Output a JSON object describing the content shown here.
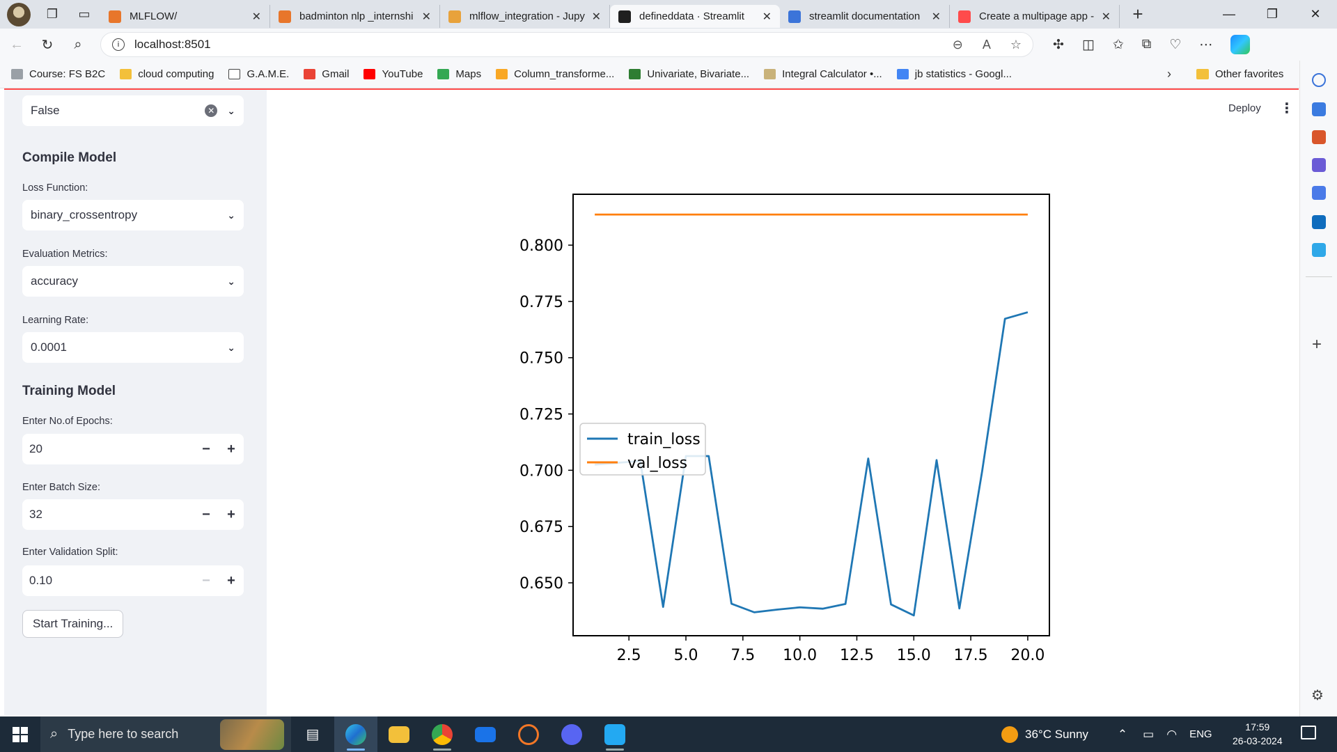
{
  "browser": {
    "tabs": [
      {
        "title": "MLFLOW/",
        "favicon_color": "#e8762b"
      },
      {
        "title": "badminton nlp _internshi",
        "favicon_color": "#e8762b"
      },
      {
        "title": "mlflow_integration - Jupy",
        "favicon_color": "#e8a23b"
      },
      {
        "title": "defineddata · Streamlit",
        "favicon_color": "#1f1f1f",
        "active": true
      },
      {
        "title": "streamlit documentation",
        "favicon_color": "#3b74d9"
      },
      {
        "title": "Create a multipage app -",
        "favicon_color": "#ff4b4b"
      }
    ],
    "url": "localhost:8501",
    "favorites": [
      {
        "label": "Course: FS B2C",
        "icon_color": "#9aa0a6"
      },
      {
        "label": "cloud computing",
        "icon_color": "#f3c03a"
      },
      {
        "label": "G.A.M.E.",
        "icon_color": "#ffffff"
      },
      {
        "label": "Gmail",
        "icon_color": "#ea4335"
      },
      {
        "label": "YouTube",
        "icon_color": "#ff0000"
      },
      {
        "label": "Maps",
        "icon_color": "#34a853"
      },
      {
        "label": "Column_transforme...",
        "icon_color": "#f9a825"
      },
      {
        "label": "Univariate, Bivariate...",
        "icon_color": "#2e7d32"
      },
      {
        "label": "Integral Calculator •...",
        "icon_color": "#c9b27a"
      },
      {
        "label": "jb statistics - Googl...",
        "icon_color": "#4285f4"
      }
    ],
    "other_favorites": "Other favorites"
  },
  "sidebar": {
    "top_select_value": "False",
    "compile_heading": "Compile Model",
    "loss_label": "Loss Function:",
    "loss_value": "binary_crossentropy",
    "metrics_label": "Evaluation Metrics:",
    "metrics_value": "accuracy",
    "lr_label": "Learning Rate:",
    "lr_value": "0.0001",
    "training_heading": "Training Model",
    "epochs_label": "Enter No.of Epochs:",
    "epochs_value": "20",
    "batch_label": "Enter Batch Size:",
    "batch_value": "32",
    "split_label": "Enter Validation Split:",
    "split_value": "0.10",
    "start_button": "Start Training...",
    "minus": "−",
    "plus": "+"
  },
  "header": {
    "deploy": "Deploy"
  },
  "chart_data": {
    "type": "line",
    "x": [
      1,
      2,
      3,
      4,
      5,
      6,
      7,
      8,
      9,
      10,
      11,
      12,
      13,
      14,
      15,
      16,
      17,
      18,
      19,
      20
    ],
    "series": [
      {
        "name": "train_loss",
        "color": "#1f77b4",
        "values": [
          0.7025,
          0.7033,
          0.7041,
          0.6393,
          0.7063,
          0.7063,
          0.6407,
          0.6369,
          0.6381,
          0.6391,
          0.6385,
          0.6406,
          0.7052,
          0.6404,
          0.6355,
          0.7045,
          0.6386,
          0.6997,
          0.7673,
          0.7702
        ]
      },
      {
        "name": "val_loss",
        "color": "#ff7f0e",
        "values": [
          0.8136,
          0.8136,
          0.8136,
          0.8136,
          0.8136,
          0.8136,
          0.8136,
          0.8136,
          0.8136,
          0.8136,
          0.8136,
          0.8136,
          0.8136,
          0.8136,
          0.8136,
          0.8136,
          0.8136,
          0.8136,
          0.8136,
          0.8136
        ]
      }
    ],
    "xlim": [
      0.05,
      20.95
    ],
    "ylim": [
      0.6265,
      0.8226
    ],
    "xticks": [
      "2.5",
      "5.0",
      "7.5",
      "10.0",
      "12.5",
      "15.0",
      "17.5",
      "20.0"
    ],
    "yticks": [
      "0.650",
      "0.675",
      "0.700",
      "0.725",
      "0.750",
      "0.775",
      "0.800"
    ],
    "legend_position": "center-left"
  },
  "taskbar": {
    "search_placeholder": "Type here to search",
    "weather": "36°C  Sunny",
    "lang": "ENG",
    "time": "17:59",
    "date": "26-03-2024"
  }
}
